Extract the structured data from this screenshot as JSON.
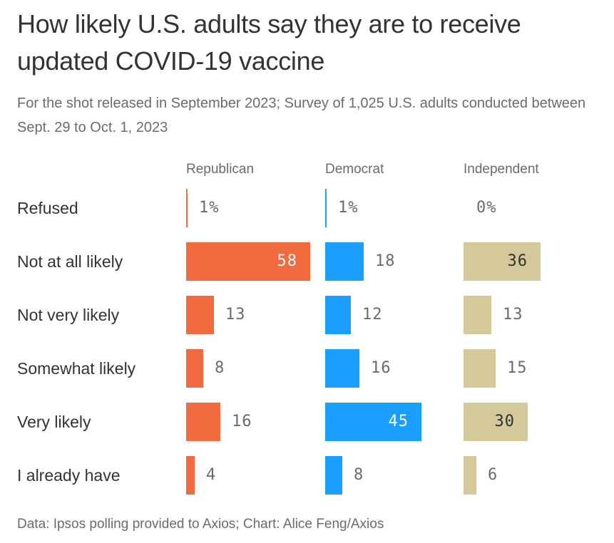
{
  "title": "How likely U.S. adults say they are to receive updated COVID-19 vaccine",
  "subtitle": "For the shot released in September 2023; Survey of 1,025 U.S. adults conducted between Sept. 29 to Oct. 1, 2023",
  "source": "Data: Ipsos polling provided to Axios; Chart: Alice Feng/Axios",
  "colors": {
    "Republican": "#F26A3F",
    "Democrat": "#1A9FFF",
    "Independent": "#D4C99B",
    "inside_label_light": "#ffffff",
    "inside_label_dark": "#333333",
    "outside_label": "#6b6b6b"
  },
  "chart_data": {
    "type": "bar",
    "orientation": "horizontal",
    "layout": "small-multiples",
    "title": "How likely U.S. adults say they are to receive updated COVID-19 vaccine",
    "subtitle": "For the shot released in September 2023; Survey of 1,025 U.S. adults conducted between Sept. 29 to Oct. 1, 2023",
    "unit": "%",
    "categories": [
      "Refused",
      "Not at all likely",
      "Not very likely",
      "Somewhat likely",
      "Very likely",
      "I already have"
    ],
    "series": [
      {
        "name": "Republican",
        "values": [
          1,
          58,
          13,
          8,
          16,
          4
        ],
        "labels": [
          "1%",
          "58",
          "13",
          "8",
          "16",
          "4"
        ]
      },
      {
        "name": "Democrat",
        "values": [
          1,
          18,
          12,
          16,
          45,
          8
        ],
        "labels": [
          "1%",
          "18",
          "12",
          "16",
          "45",
          "8"
        ]
      },
      {
        "name": "Independent",
        "values": [
          0,
          36,
          13,
          15,
          30,
          6
        ],
        "labels": [
          "0%",
          "36",
          "13",
          "15",
          "30",
          "6"
        ]
      }
    ],
    "xlabel": "",
    "ylabel": "",
    "xlim": [
      0,
      58
    ],
    "grid": false,
    "legend": "none",
    "source": "Data: Ipsos polling provided to Axios; Chart: Alice Feng/Axios"
  }
}
